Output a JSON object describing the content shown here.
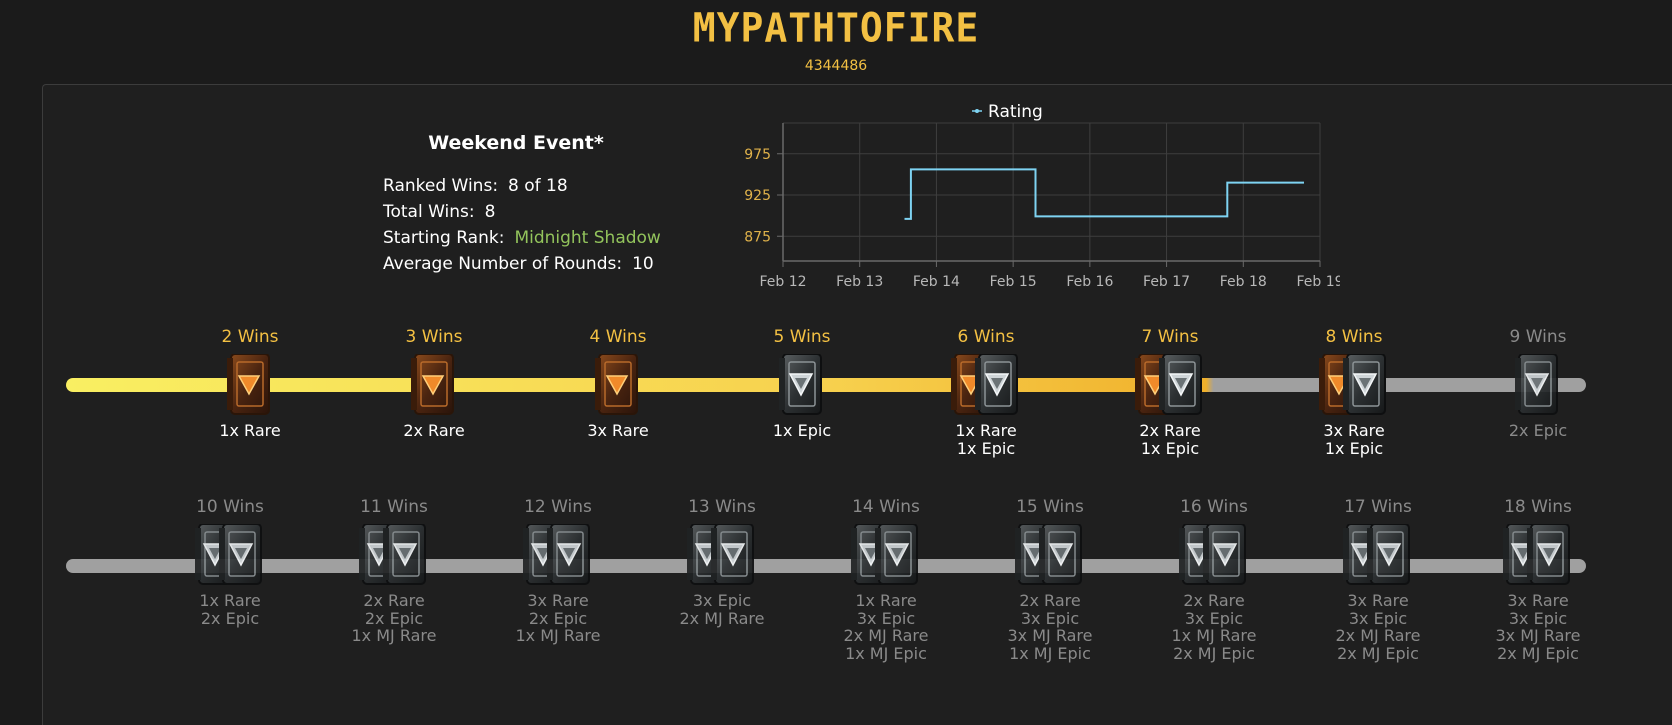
{
  "header": {
    "title": "MYPATHTOFIRE",
    "player_id": "4344486"
  },
  "event": {
    "title": "Weekend Event*",
    "stats": [
      {
        "label": "Ranked Wins:",
        "value": "8 of 18",
        "color": "#ffffff"
      },
      {
        "label": "Total Wins:",
        "value": "8",
        "color": "#ffffff"
      },
      {
        "label": "Starting Rank:",
        "value": "Midnight Shadow",
        "color": "#93c45c"
      },
      {
        "label": "Average Number of Rounds:",
        "value": "10",
        "color": "#ffffff"
      }
    ]
  },
  "chart_data": {
    "type": "line",
    "step": true,
    "legend": [
      "Rating"
    ],
    "legend_position": "top-center",
    "x_tick_labels": [
      "Feb 12",
      "Feb 13",
      "Feb 14",
      "Feb 15",
      "Feb 16",
      "Feb 17",
      "Feb 18",
      "Feb 19"
    ],
    "y_tick_labels": [
      "875",
      "925",
      "975"
    ],
    "ylim": [
      845,
      1005
    ],
    "grid": true,
    "series": [
      {
        "name": "Rating",
        "color": "#7ed3f2",
        "points": [
          {
            "x": "Feb 13 14:00",
            "y": 896
          },
          {
            "x": "Feb 13 16:00",
            "y": 896
          },
          {
            "x": "Feb 13 16:00",
            "y": 956
          },
          {
            "x": "Feb 15 07:00",
            "y": 956
          },
          {
            "x": "Feb 15 07:00",
            "y": 899
          },
          {
            "x": "Feb 17 19:00",
            "y": 899
          },
          {
            "x": "Feb 17 19:00",
            "y": 940
          },
          {
            "x": "Feb 18 19:00",
            "y": 940
          }
        ]
      }
    ]
  },
  "progress": {
    "completed_wins": 8,
    "rows": [
      [
        {
          "wins": "2 Wins",
          "reward": [
            "1x Rare"
          ],
          "pack": "rare",
          "unlocked": true
        },
        {
          "wins": "3 Wins",
          "reward": [
            "2x Rare"
          ],
          "pack": "rare",
          "unlocked": true
        },
        {
          "wins": "4 Wins",
          "reward": [
            "3x Rare"
          ],
          "pack": "rare",
          "unlocked": true
        },
        {
          "wins": "5 Wins",
          "reward": [
            "1x Epic"
          ],
          "pack": "epic",
          "unlocked": true
        },
        {
          "wins": "6 Wins",
          "reward": [
            "1x Rare",
            "1x Epic"
          ],
          "pack": "rare-epic",
          "unlocked": true
        },
        {
          "wins": "7 Wins",
          "reward": [
            "2x Rare",
            "1x Epic"
          ],
          "pack": "rare-epic",
          "unlocked": true
        },
        {
          "wins": "8 Wins",
          "reward": [
            "3x Rare",
            "1x Epic"
          ],
          "pack": "rare-epic",
          "unlocked": true
        },
        {
          "wins": "9 Wins",
          "reward": [
            "2x Epic"
          ],
          "pack": "epic",
          "unlocked": false
        }
      ],
      [
        {
          "wins": "10 Wins",
          "reward": [
            "1x Rare",
            "2x Epic"
          ],
          "pack": "double-epic",
          "unlocked": false
        },
        {
          "wins": "11 Wins",
          "reward": [
            "2x Rare",
            "2x Epic",
            "1x MJ Rare"
          ],
          "pack": "double-epic",
          "unlocked": false
        },
        {
          "wins": "12 Wins",
          "reward": [
            "3x Rare",
            "2x Epic",
            "1x MJ Rare"
          ],
          "pack": "double-epic",
          "unlocked": false
        },
        {
          "wins": "13 Wins",
          "reward": [
            "3x Epic",
            "2x MJ Rare"
          ],
          "pack": "double-epic",
          "unlocked": false
        },
        {
          "wins": "14 Wins",
          "reward": [
            "1x Rare",
            "3x Epic",
            "2x MJ Rare",
            "1x MJ Epic"
          ],
          "pack": "double-epic",
          "unlocked": false
        },
        {
          "wins": "15 Wins",
          "reward": [
            "2x Rare",
            "3x Epic",
            "3x MJ Rare",
            "1x MJ Epic"
          ],
          "pack": "double-epic",
          "unlocked": false
        },
        {
          "wins": "16 Wins",
          "reward": [
            "2x Rare",
            "3x Epic",
            "1x MJ Rare",
            "2x MJ Epic"
          ],
          "pack": "double-epic",
          "unlocked": false
        },
        {
          "wins": "17 Wins",
          "reward": [
            "3x Rare",
            "3x Epic",
            "2x MJ Rare",
            "2x MJ Epic"
          ],
          "pack": "double-epic",
          "unlocked": false
        },
        {
          "wins": "18 Wins",
          "reward": [
            "3x Rare",
            "3x Epic",
            "3x MJ Rare",
            "2x MJ Epic"
          ],
          "pack": "double-epic",
          "unlocked": false
        }
      ]
    ]
  },
  "colors": {
    "accent": "#f3c043",
    "rank_green": "#93c45c",
    "locked_text": "#8a8a8a",
    "rating_line": "#7ed3f2"
  }
}
